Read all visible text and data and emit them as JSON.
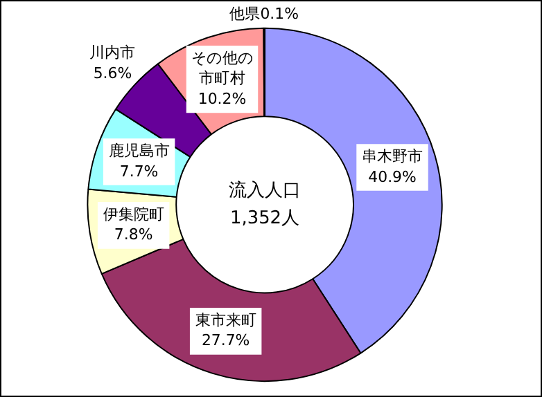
{
  "chart_data": {
    "type": "donut",
    "title": "流入人口",
    "subtitle": "1,352人",
    "categories": [
      "串木野市",
      "東市来町",
      "伊集院町",
      "鹿児島市",
      "川内市",
      "その他の市町村",
      "他県"
    ],
    "values": [
      40.9,
      27.7,
      7.8,
      7.7,
      5.6,
      10.2,
      0.1
    ],
    "colors": [
      "#9999ff",
      "#993366",
      "#ffffcc",
      "#99ffff",
      "#660099",
      "#ff9999",
      "#ffcc99"
    ],
    "value_labels": [
      "40.9%",
      "27.7%",
      "7.8%",
      "7.7%",
      "5.6%",
      "10.2%",
      "0.1%"
    ],
    "legend": false
  }
}
